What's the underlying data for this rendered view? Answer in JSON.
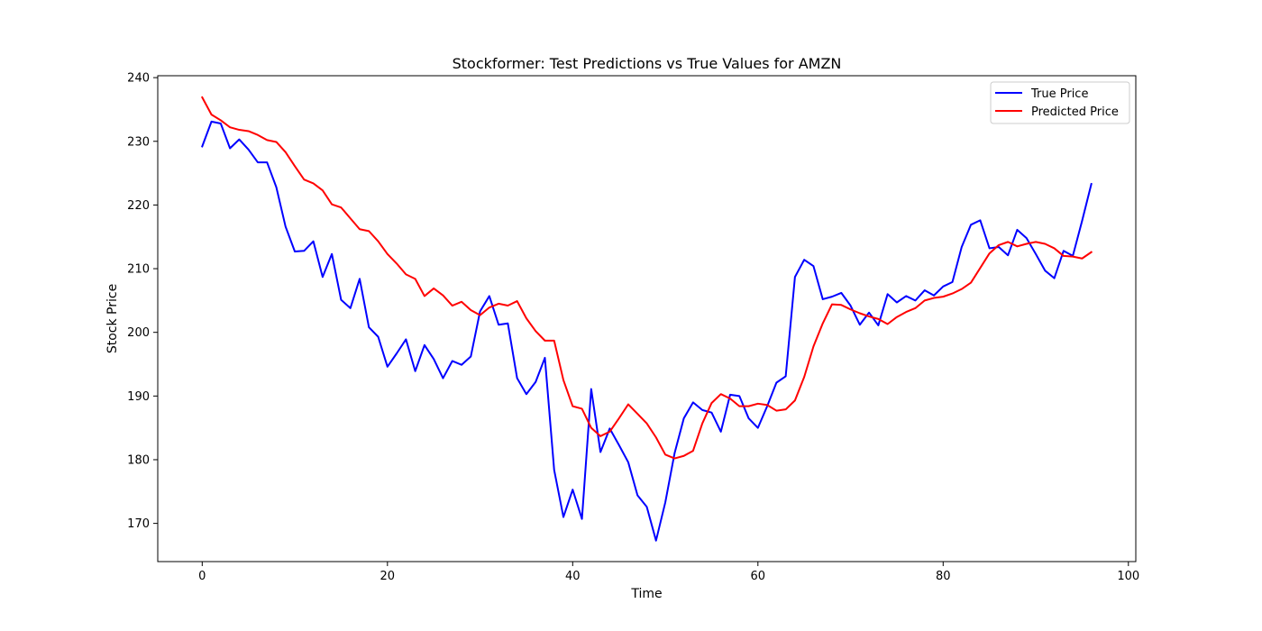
{
  "chart_data": {
    "type": "line",
    "title": "Stockformer: Test Predictions vs True Values for AMZN",
    "xlabel": "Time",
    "ylabel": "Stock Price",
    "xlim": [
      -4.8,
      100.8
    ],
    "ylim": [
      164,
      240.3
    ],
    "xticks": [
      0,
      20,
      40,
      60,
      80,
      100
    ],
    "yticks": [
      170,
      180,
      190,
      200,
      210,
      220,
      230,
      240
    ],
    "grid": false,
    "legend_position": "top-right",
    "series": [
      {
        "name": "True Price",
        "color": "#0000ff",
        "x": [
          0,
          1,
          2,
          3,
          4,
          5,
          6,
          7,
          8,
          9,
          10,
          11,
          12,
          13,
          14,
          15,
          16,
          17,
          18,
          19,
          20,
          21,
          22,
          23,
          24,
          25,
          26,
          27,
          28,
          29,
          30,
          31,
          32,
          33,
          34,
          35,
          36,
          37,
          38,
          39,
          40,
          41,
          42,
          43,
          44,
          45,
          46,
          47,
          48,
          49,
          50,
          51,
          52,
          53,
          54,
          55,
          56,
          57,
          58,
          59,
          60,
          61,
          62,
          63,
          64,
          65,
          66,
          67,
          68,
          69,
          70,
          71,
          72,
          73,
          74,
          75,
          76,
          77,
          78,
          79,
          80,
          81,
          82,
          83,
          84,
          85,
          86,
          87,
          88,
          89,
          90,
          91,
          92,
          93,
          94,
          95,
          96
        ],
        "values": [
          229.2,
          233.1,
          232.8,
          228.9,
          230.3,
          228.7,
          226.7,
          226.7,
          222.8,
          216.6,
          212.7,
          212.8,
          214.3,
          208.7,
          212.3,
          205.1,
          203.8,
          208.4,
          200.8,
          199.3,
          194.6,
          196.7,
          198.9,
          193.9,
          198.0,
          195.8,
          192.8,
          195.5,
          194.9,
          196.2,
          203.3,
          205.7,
          201.2,
          201.4,
          192.8,
          190.3,
          192.2,
          196.0,
          178.4,
          171.0,
          175.3,
          170.7,
          191.1,
          181.2,
          184.9,
          182.3,
          179.6,
          174.4,
          172.6,
          167.3,
          173.3,
          181.0,
          186.5,
          189.0,
          187.8,
          187.4,
          184.4,
          190.2,
          190.0,
          186.5,
          185.0,
          188.4,
          192.1,
          193.1,
          208.7,
          211.4,
          210.4,
          205.2,
          205.6,
          206.2,
          204.2,
          201.2,
          203.1,
          201.1,
          206.0,
          204.7,
          205.7,
          205.0,
          206.6,
          205.8,
          207.2,
          207.9,
          213.4,
          216.9,
          217.6,
          213.2,
          213.4,
          212.1,
          216.1,
          214.8,
          212.3,
          209.7,
          208.5,
          212.8,
          212.0,
          217.5,
          223.3
        ]
      },
      {
        "name": "Predicted Price",
        "color": "#ff0000",
        "x": [
          0,
          1,
          2,
          3,
          4,
          5,
          6,
          7,
          8,
          9,
          10,
          11,
          12,
          13,
          14,
          15,
          16,
          17,
          18,
          19,
          20,
          21,
          22,
          23,
          24,
          25,
          26,
          27,
          28,
          29,
          30,
          31,
          32,
          33,
          34,
          35,
          36,
          37,
          38,
          39,
          40,
          41,
          42,
          43,
          44,
          45,
          46,
          47,
          48,
          49,
          50,
          51,
          52,
          53,
          54,
          55,
          56,
          57,
          58,
          59,
          60,
          61,
          62,
          63,
          64,
          65,
          66,
          67,
          68,
          69,
          70,
          71,
          72,
          73,
          74,
          75,
          76,
          77,
          78,
          79,
          80,
          81,
          82,
          83,
          84,
          85,
          86,
          87,
          88,
          89,
          90,
          91,
          92,
          93,
          94,
          95,
          96
        ],
        "values": [
          236.9,
          234.2,
          233.3,
          232.2,
          231.8,
          231.6,
          231.0,
          230.2,
          229.9,
          228.3,
          226.1,
          224.0,
          223.4,
          222.3,
          220.1,
          219.6,
          217.9,
          216.2,
          215.9,
          214.3,
          212.3,
          210.8,
          209.1,
          208.4,
          205.7,
          206.9,
          205.8,
          204.2,
          204.8,
          203.5,
          202.7,
          203.9,
          204.5,
          204.2,
          204.9,
          202.2,
          200.2,
          198.7,
          198.7,
          192.5,
          188.4,
          188.0,
          185.0,
          183.7,
          184.4,
          186.5,
          188.7,
          187.2,
          185.7,
          183.5,
          180.8,
          180.2,
          180.6,
          181.4,
          185.7,
          188.9,
          190.3,
          189.6,
          188.4,
          188.4,
          188.8,
          188.6,
          187.7,
          187.9,
          189.3,
          193.0,
          197.8,
          201.4,
          204.4,
          204.3,
          203.6,
          203.0,
          202.5,
          202.1,
          201.3,
          202.4,
          203.2,
          203.8,
          205.0,
          205.4,
          205.6,
          206.1,
          206.8,
          207.8,
          210.1,
          212.4,
          213.7,
          214.2,
          213.5,
          213.9,
          214.2,
          213.9,
          213.2,
          212.0,
          211.9,
          211.6,
          212.6
        ]
      }
    ]
  }
}
